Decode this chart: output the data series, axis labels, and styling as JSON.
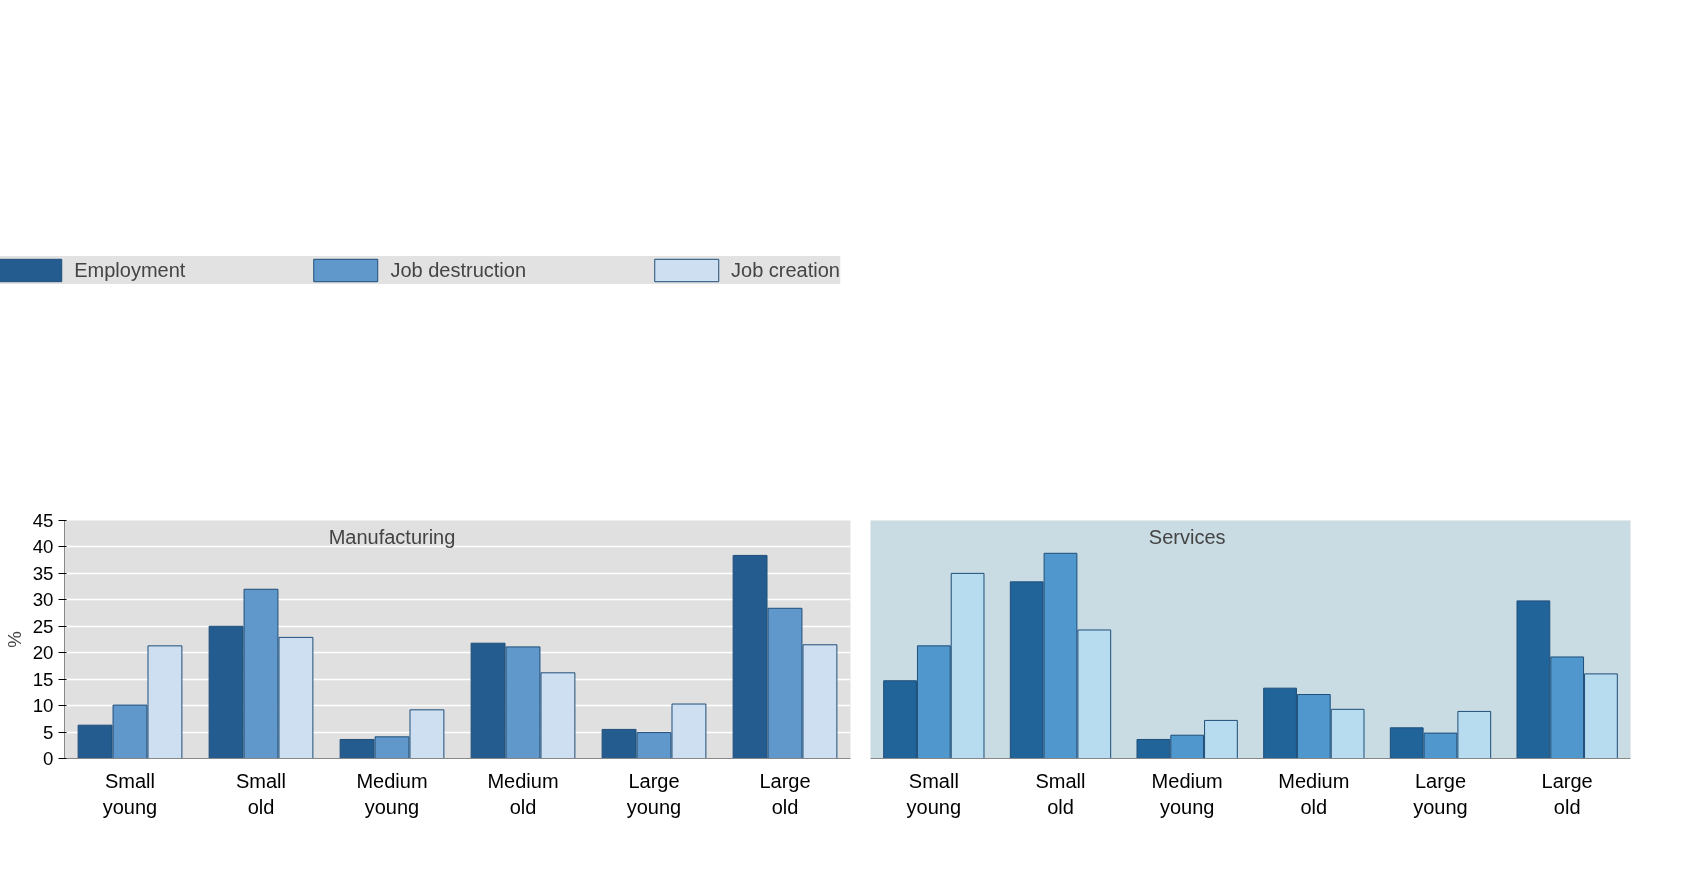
{
  "chart_data": [
    {
      "type": "bar",
      "ylabel": "%",
      "categories": [
        "Small\nyoung",
        "Small\nold",
        "Medium\nyoung",
        "Medium\nold",
        "Large\nyoung",
        "Large\nold"
      ],
      "series": [
        {
          "name": "Employment",
          "color": "#255c8f",
          "values": [
            6.3,
            25.0,
            3.6,
            21.8,
            5.5,
            38.4
          ]
        },
        {
          "name": "Job destruction",
          "color": "#6098cb",
          "values": [
            10.1,
            32.0,
            4.1,
            21.1,
            4.9,
            28.4
          ]
        },
        {
          "name": "Job creation",
          "color": "#cddff1",
          "values": [
            21.3,
            22.9,
            9.2,
            16.2,
            10.3,
            21.5
          ]
        }
      ],
      "annotations": [
        "Manufacturing"
      ],
      "ylim": [
        0,
        45
      ],
      "yticks": [
        0,
        5,
        10,
        15,
        20,
        25,
        30,
        35,
        40,
        45
      ],
      "grid": "y",
      "legend": "top"
    },
    {
      "type": "bar",
      "categories": [
        "Small\nyoung",
        "Small\nold",
        "Medium\nyoung",
        "Medium\nold",
        "Large\nyoung",
        "Large\nold"
      ],
      "series": [
        {
          "color": "#20649a",
          "values": [
            14.7,
            33.4,
            3.6,
            13.3,
            5.8,
            29.8
          ]
        },
        {
          "color": "#4f97cc",
          "values": [
            21.3,
            38.8,
            4.4,
            12.1,
            4.8,
            19.2
          ]
        },
        {
          "color": "#b7dbef",
          "values": [
            35.0,
            24.3,
            7.2,
            9.3,
            8.9,
            16.0
          ]
        }
      ],
      "annotations": [
        "Services"
      ],
      "ylim": [
        0,
        45
      ],
      "yticks": [
        0,
        5,
        10,
        15,
        20,
        25,
        30,
        35,
        40,
        45
      ],
      "grid": "y",
      "tick_labels": "x",
      "bands": [
        {
          "axis": "y",
          "from": 0,
          "to": 45,
          "color": "#c9dce3"
        }
      ]
    }
  ]
}
